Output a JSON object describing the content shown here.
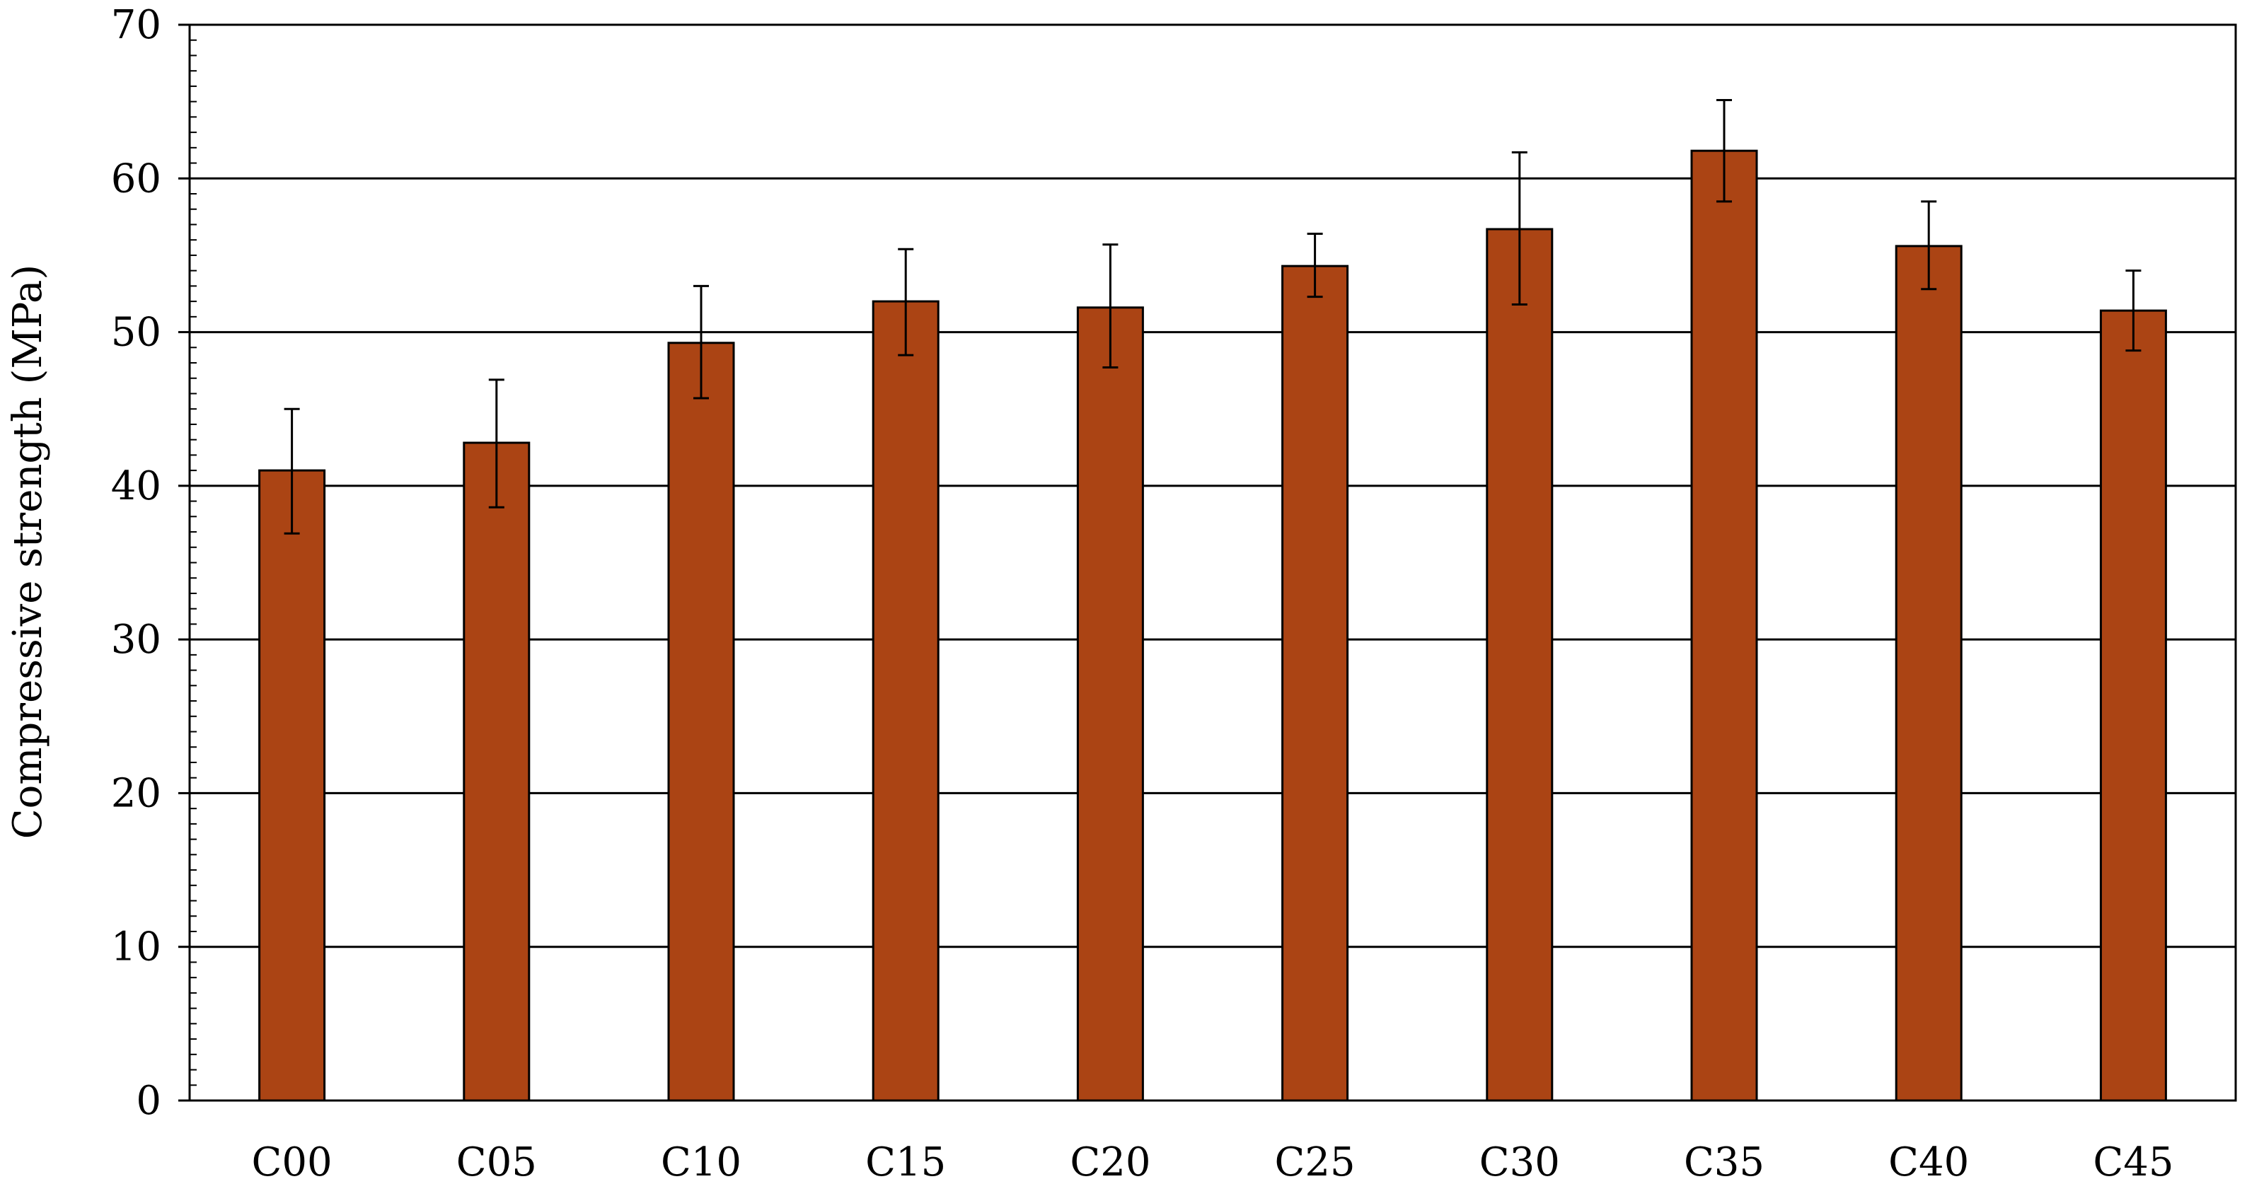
{
  "chart_data": {
    "type": "bar",
    "ylabel": "Compressive strength (MPa)",
    "xlabel": "",
    "ylim": [
      0,
      70
    ],
    "y_major_ticks": [
      0,
      10,
      20,
      30,
      40,
      50,
      60,
      70
    ],
    "y_minor_step": 1,
    "grid": "horizontal major",
    "categories": [
      "C00",
      "C05",
      "C10",
      "C15",
      "C20",
      "C25",
      "C30",
      "C35",
      "C40",
      "C45"
    ],
    "values": [
      41.0,
      42.8,
      49.3,
      52.0,
      51.6,
      54.3,
      56.7,
      61.8,
      55.6,
      51.4
    ],
    "error_low": [
      36.9,
      38.6,
      45.7,
      48.5,
      47.7,
      52.3,
      51.8,
      58.5,
      52.8,
      48.8
    ],
    "error_high": [
      45.0,
      46.9,
      53.0,
      55.4,
      55.7,
      56.4,
      61.7,
      65.1,
      58.5,
      54.0
    ],
    "bar_color": "#ab4414",
    "bar_edge_color": "#000000"
  }
}
